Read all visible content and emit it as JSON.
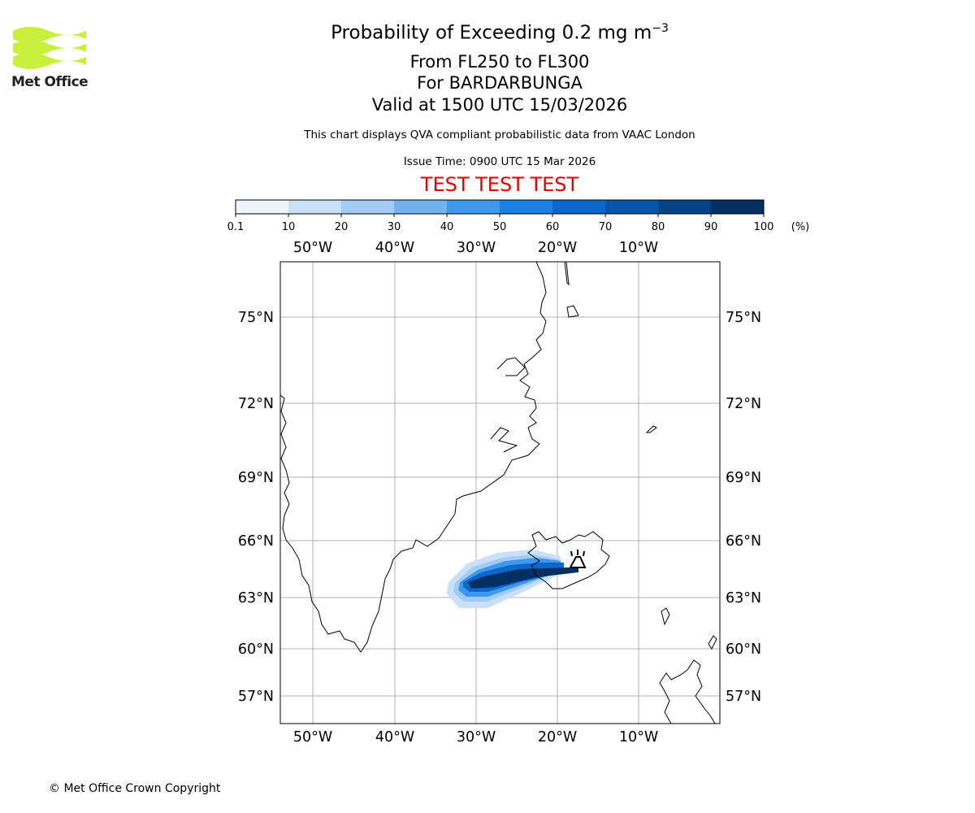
{
  "header": {
    "logo_text": "Met Office",
    "title_prefix": "Probability of Exceeding 0.2 mg m",
    "title_exponent": "−3",
    "level_range": "From FL250 to FL300",
    "volcano": "For BARDARBUNGA",
    "valid_time": "Valid at 1500 UTC 15/03/2026",
    "description": "This chart displays QVA compliant probabilistic data from VAAC London",
    "issue_time": "Issue Time: 0900 UTC 15 Mar 2026",
    "test_banner": "TEST TEST TEST"
  },
  "colorbar": {
    "ticks": [
      "0.1",
      "10",
      "20",
      "30",
      "40",
      "50",
      "60",
      "70",
      "80",
      "90",
      "100"
    ],
    "unit": "(%)",
    "colors": [
      "#eef5fd",
      "#c9e0f8",
      "#a3ccf5",
      "#72b2f0",
      "#3e98ee",
      "#1a80e4",
      "#0a68cc",
      "#0655ad",
      "#054389",
      "#032f61"
    ]
  },
  "map": {
    "top_lon_labels": [
      "50°W",
      "40°W",
      "30°W",
      "20°W",
      "10°W"
    ],
    "bottom_lon_labels": [
      "50°W",
      "40°W",
      "30°W",
      "20°W",
      "10°W"
    ],
    "left_lat_labels": [
      "75°N",
      "72°N",
      "69°N",
      "66°N",
      "63°N",
      "60°N",
      "57°N"
    ],
    "right_lat_labels": [
      "75°N",
      "72°N",
      "69°N",
      "66°N",
      "63°N",
      "60°N",
      "57°N"
    ],
    "volcano_symbol": "volcano-icon"
  },
  "footer": {
    "copyright": "© Met Office Crown Copyright"
  }
}
